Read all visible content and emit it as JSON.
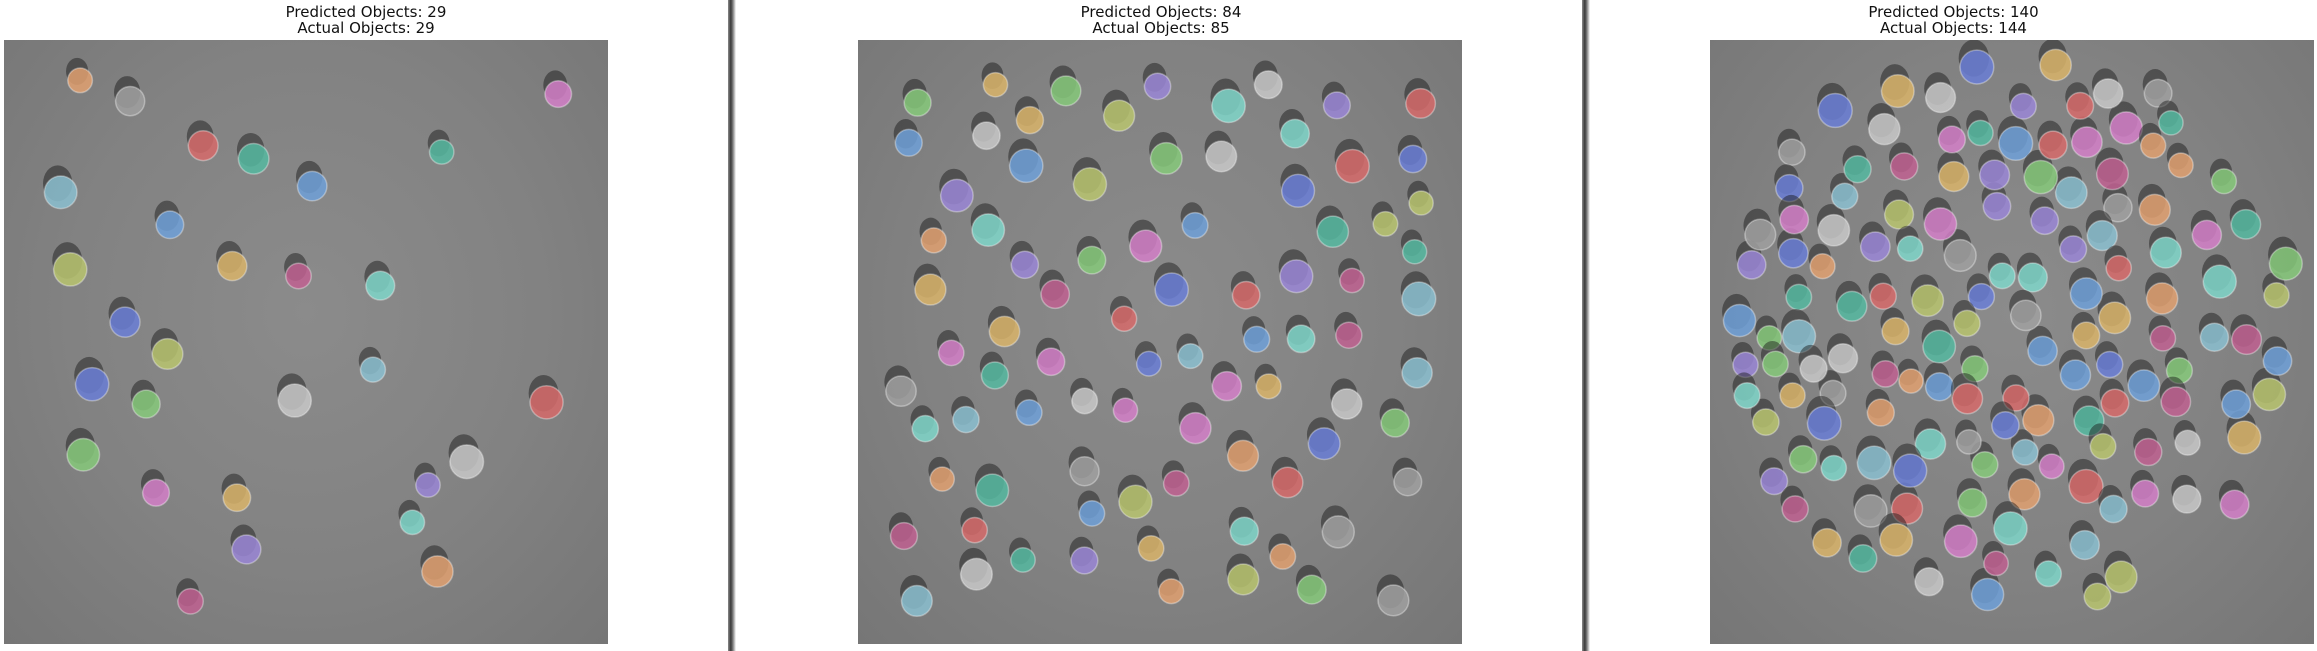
{
  "panels": [
    {
      "id": "left",
      "predicted_label": "Predicted Objects: 29",
      "actual_label": "Actual Objects: 29",
      "predicted_count": 29,
      "actual_count": 29
    },
    {
      "id": "middle",
      "predicted_label": "Predicted Objects: 84",
      "actual_label": "Actual Objects: 85",
      "predicted_count": 84,
      "actual_count": 85
    },
    {
      "id": "right",
      "predicted_label": "Predicted Objects: 140",
      "actual_label": "Actual Objects: 144",
      "predicted_count": 140,
      "actual_count": 144
    }
  ],
  "mask_palette": [
    "#6fa0d8",
    "#86c97a",
    "#d47fc8",
    "#d9b46a",
    "#7fd6c9",
    "#9a86d6",
    "#d66a6a",
    "#b9c46e",
    "#c8c8c8",
    "#8bbfd0",
    "#e0a070",
    "#6a7ed6",
    "#55b8a0",
    "#c06090",
    "#a0a0a0"
  ]
}
